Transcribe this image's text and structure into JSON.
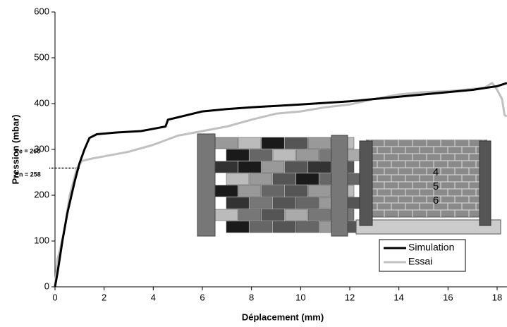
{
  "chart_data": {
    "type": "line",
    "xlabel": "Déplacement (mm)",
    "ylabel": "Pression (mbar)",
    "xlim": [
      0,
      18.4
    ],
    "ylim": [
      0,
      600
    ],
    "xticks": [
      0,
      2,
      4,
      6,
      8,
      10,
      12,
      14,
      16,
      18
    ],
    "yticks": [
      0,
      100,
      200,
      300,
      400,
      500,
      600
    ],
    "grid": false,
    "legend": "lower right",
    "series": [
      {
        "name": "Simulation",
        "color": "#000000",
        "x": [
          0,
          0.1,
          0.3,
          0.5,
          0.8,
          1.0,
          1.2,
          1.4,
          1.7,
          2.5,
          3.5,
          4,
          4.5,
          4.6,
          5,
          6,
          7,
          8,
          10,
          12,
          14,
          16,
          17,
          18,
          18.4
        ],
        "values": [
          0,
          30,
          100,
          160,
          230,
          270,
          300,
          325,
          333,
          337,
          340,
          345,
          350,
          365,
          370,
          383,
          388,
          392,
          398,
          405,
          415,
          425,
          430,
          438,
          445
        ]
      },
      {
        "name": "Essai",
        "color": "#c0c0c0",
        "x": [
          0,
          0.1,
          0.2,
          0.4,
          0.6,
          0.9,
          1.1,
          1.5,
          2,
          3,
          4,
          5,
          6,
          7,
          8,
          9,
          10,
          11,
          12,
          13,
          14,
          15,
          16,
          17,
          17.5,
          17.8,
          18,
          18.2,
          18.3,
          18.4
        ],
        "values": [
          0,
          60,
          80,
          130,
          200,
          260,
          275,
          280,
          285,
          295,
          310,
          330,
          340,
          350,
          365,
          378,
          383,
          392,
          398,
          410,
          420,
          425,
          427,
          432,
          435,
          445,
          430,
          410,
          375,
          372
        ]
      }
    ],
    "annotations": [
      {
        "text": "Pe = 260",
        "value": 260
      },
      {
        "text": "Pn = 258",
        "value": 258
      }
    ],
    "point_labels": [
      "4",
      "5",
      "6"
    ]
  }
}
